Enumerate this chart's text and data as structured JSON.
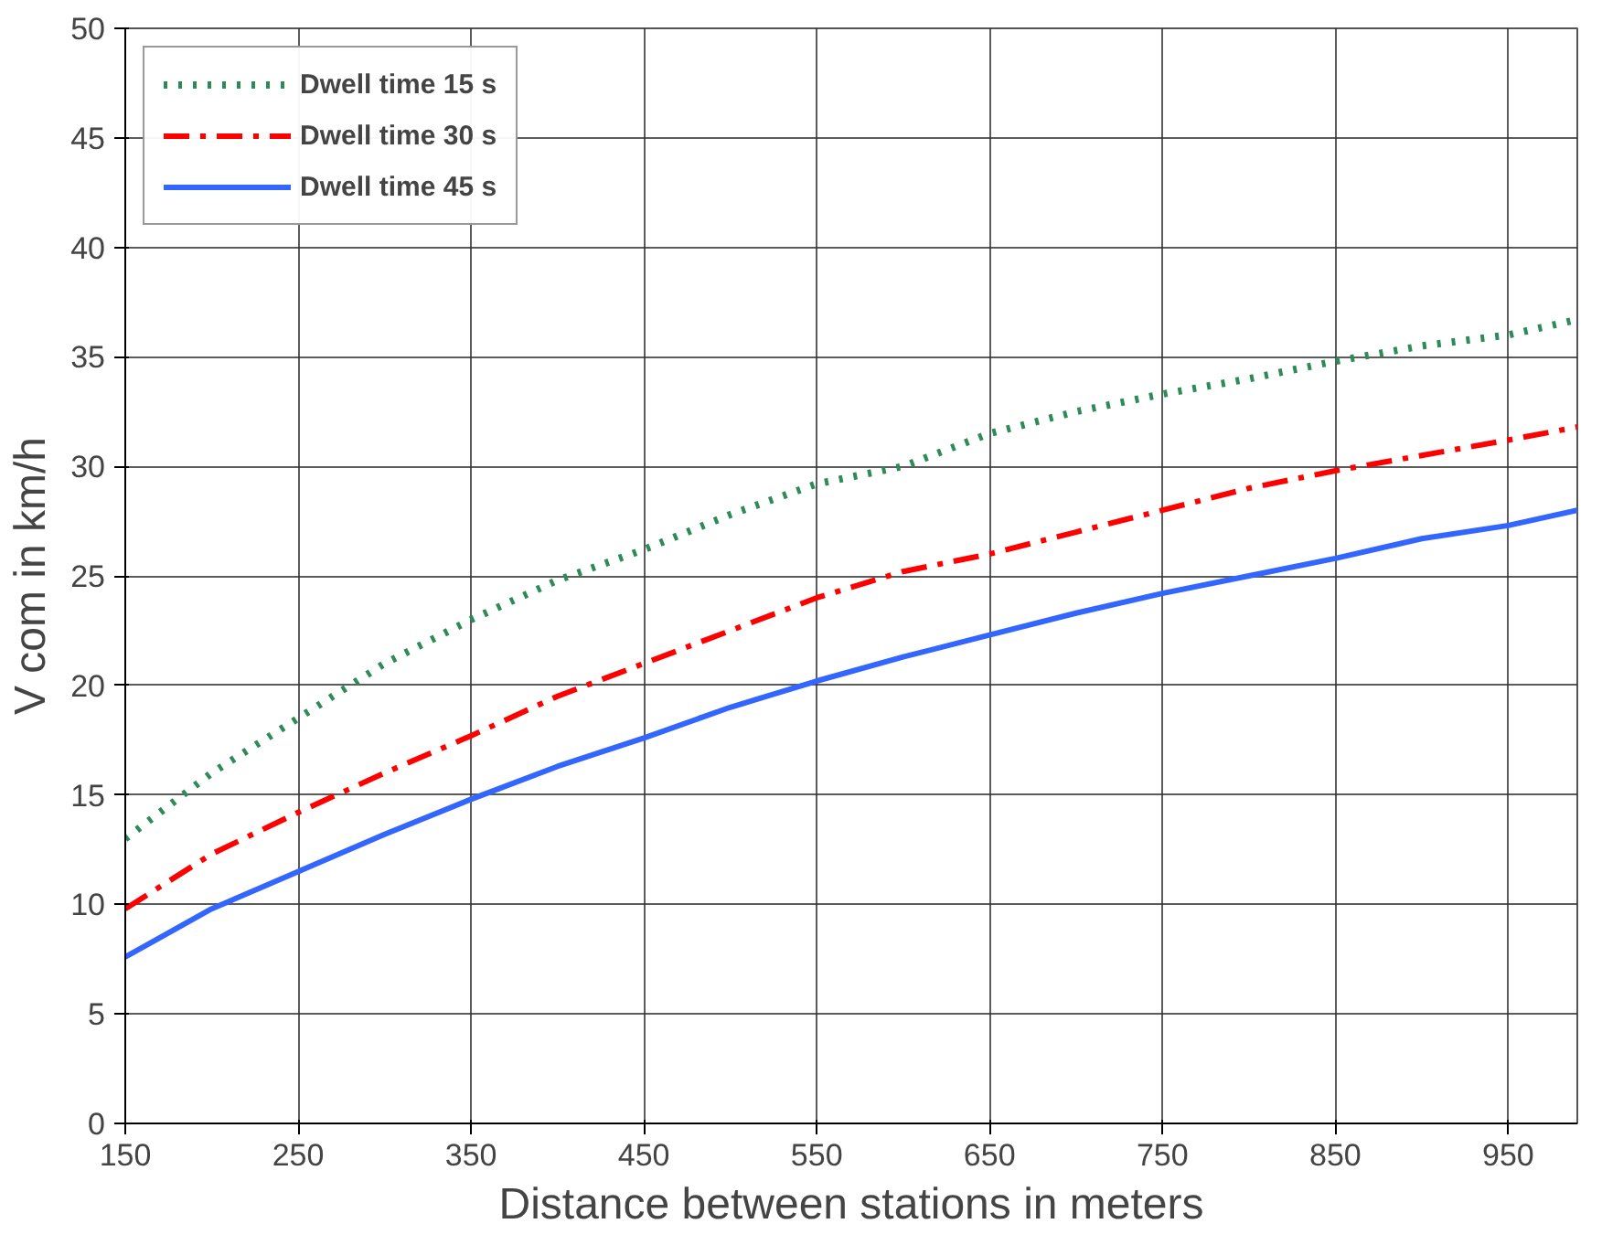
{
  "chart_data": {
    "type": "line",
    "xlabel": "Distance between stations in meters",
    "ylabel": "V com in km/h",
    "x": [
      150,
      200,
      250,
      300,
      350,
      400,
      450,
      500,
      550,
      600,
      650,
      700,
      750,
      800,
      850,
      900,
      950,
      990
    ],
    "xlim": [
      150,
      990
    ],
    "xticks": [
      150,
      250,
      350,
      450,
      550,
      650,
      750,
      850,
      950
    ],
    "ylim": [
      0,
      50
    ],
    "yticks": [
      0,
      5,
      10,
      15,
      20,
      25,
      30,
      35,
      40,
      45,
      50
    ],
    "grid": true,
    "legend": "top left",
    "series": [
      {
        "name": "Dwell time 15 s",
        "color": "#2e8b57",
        "line_style": "dotted",
        "values": [
          13,
          16,
          18.5,
          21,
          23,
          24.8,
          26.2,
          27.8,
          29.2,
          30,
          31.5,
          32.5,
          33.3,
          34,
          34.8,
          35.5,
          36,
          36.7
        ]
      },
      {
        "name": "Dwell time 30 s",
        "color": "#ff0000",
        "line_style": "dashdot",
        "values": [
          9.8,
          12.3,
          14.2,
          16,
          17.7,
          19.5,
          21,
          22.5,
          24,
          25.2,
          26,
          27,
          28,
          29,
          29.8,
          30.5,
          31.2,
          31.8
        ]
      },
      {
        "name": "Dwell time 45 s",
        "color": "#3366ff",
        "line_style": "solid",
        "values": [
          7.6,
          9.8,
          11.5,
          13.2,
          14.8,
          16.3,
          17.6,
          19,
          20.2,
          21.3,
          22.3,
          23.3,
          24.2,
          25,
          25.8,
          26.7,
          27.3,
          28
        ]
      }
    ]
  }
}
